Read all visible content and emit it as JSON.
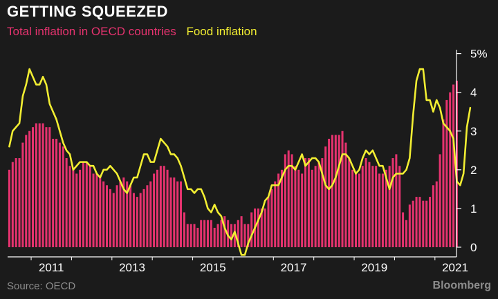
{
  "header": {
    "title": "GETTING SQUEEZED"
  },
  "footer": {
    "source": "Source: OECD",
    "brand": "Bloomberg"
  },
  "colors": {
    "background": "#1b1b1b",
    "total_inflation": "#e6336f",
    "food_inflation": "#f2ee32",
    "axis": "#ffffff"
  },
  "chart_data": {
    "type": "bar",
    "x_tick_labels": [
      "2011",
      "2013",
      "2015",
      "2017",
      "2019",
      "2021"
    ],
    "y_tick_labels": [
      "0",
      "1",
      "2",
      "3",
      "4",
      "5%"
    ],
    "ylim": [
      -0.25,
      5.1
    ],
    "xlim": [
      "2010-06",
      "2021-07"
    ],
    "legend_position": "top-left",
    "grid": false,
    "series": [
      {
        "name": "Total inflation in OECD countries",
        "type": "bar",
        "color": "#e6336f",
        "start": "2010-06",
        "frequency": "monthly",
        "values": [
          2.0,
          2.2,
          2.3,
          2.3,
          2.7,
          2.9,
          3.0,
          3.1,
          3.2,
          3.2,
          3.2,
          3.1,
          3.1,
          2.8,
          2.8,
          2.7,
          2.6,
          2.3,
          2.1,
          2.0,
          1.9,
          2.0,
          2.2,
          2.2,
          2.1,
          1.9,
          1.9,
          1.8,
          1.7,
          1.6,
          1.5,
          1.4,
          1.6,
          1.7,
          1.8,
          1.7,
          1.6,
          1.4,
          1.3,
          1.4,
          1.5,
          1.6,
          1.7,
          1.9,
          2.0,
          2.1,
          2.1,
          2.0,
          1.8,
          1.8,
          1.7,
          1.7,
          0.9,
          0.6,
          0.6,
          0.6,
          0.5,
          0.7,
          0.7,
          0.7,
          0.7,
          0.5,
          0.6,
          0.7,
          0.8,
          0.7,
          0.6,
          0.6,
          0.7,
          0.8,
          0.6,
          0.6,
          0.9,
          1.0,
          1.0,
          1.0,
          1.0,
          1.3,
          1.5,
          1.7,
          1.9,
          2.0,
          2.4,
          2.5,
          2.4,
          2.1,
          2.0,
          1.9,
          2.3,
          2.3,
          2.0,
          2.1,
          2.2,
          2.3,
          2.6,
          2.8,
          2.9,
          2.9,
          2.9,
          3.0,
          2.7,
          2.3,
          2.0,
          1.9,
          1.9,
          2.1,
          2.3,
          2.2,
          2.1,
          2.1,
          1.9,
          1.9,
          2.0,
          2.1,
          2.3,
          2.4,
          2.1,
          0.9,
          0.7,
          1.1,
          1.2,
          1.3,
          1.3,
          1.2,
          1.2,
          1.3,
          1.6,
          1.7,
          2.4,
          3.3,
          3.8,
          4.0,
          4.2,
          4.3
        ]
      },
      {
        "name": "Food inflation",
        "type": "line",
        "color": "#f2ee32",
        "start": "2010-06",
        "frequency": "monthly",
        "values": [
          2.6,
          3.0,
          3.1,
          3.2,
          3.9,
          4.2,
          4.6,
          4.4,
          4.2,
          4.2,
          4.4,
          4.2,
          3.7,
          3.5,
          3.3,
          3.0,
          2.7,
          2.5,
          2.4,
          2.0,
          2.1,
          2.2,
          2.2,
          2.2,
          2.1,
          2.1,
          1.9,
          1.8,
          2.0,
          2.0,
          2.1,
          2.0,
          1.9,
          1.7,
          1.5,
          1.4,
          1.6,
          1.8,
          1.8,
          2.1,
          2.4,
          2.4,
          2.2,
          2.2,
          2.5,
          2.8,
          2.7,
          2.6,
          2.4,
          2.4,
          2.3,
          2.1,
          1.8,
          1.5,
          1.5,
          1.4,
          1.5,
          1.5,
          1.3,
          1.0,
          0.9,
          1.1,
          0.9,
          0.8,
          0.5,
          0.3,
          0.2,
          0.4,
          0.1,
          -0.2,
          -0.2,
          0.1,
          0.3,
          0.5,
          0.7,
          0.9,
          1.2,
          1.3,
          1.6,
          1.6,
          1.6,
          1.8,
          2.0,
          2.1,
          2.1,
          2.0,
          2.2,
          2.4,
          2.1,
          2.2,
          2.3,
          2.3,
          2.2,
          1.9,
          1.6,
          1.5,
          1.6,
          1.8,
          2.1,
          2.4,
          2.4,
          2.3,
          2.1,
          1.9,
          2.0,
          2.3,
          2.5,
          2.4,
          2.5,
          2.3,
          2.1,
          2.1,
          1.8,
          1.5,
          1.8,
          1.9,
          1.9,
          1.9,
          2.0,
          2.3,
          3.4,
          4.3,
          4.6,
          4.6,
          3.8,
          3.8,
          3.5,
          3.8,
          3.6,
          3.2,
          3.1,
          3.0,
          2.8,
          1.7,
          1.6,
          1.9,
          3.1,
          3.6
        ]
      }
    ]
  }
}
